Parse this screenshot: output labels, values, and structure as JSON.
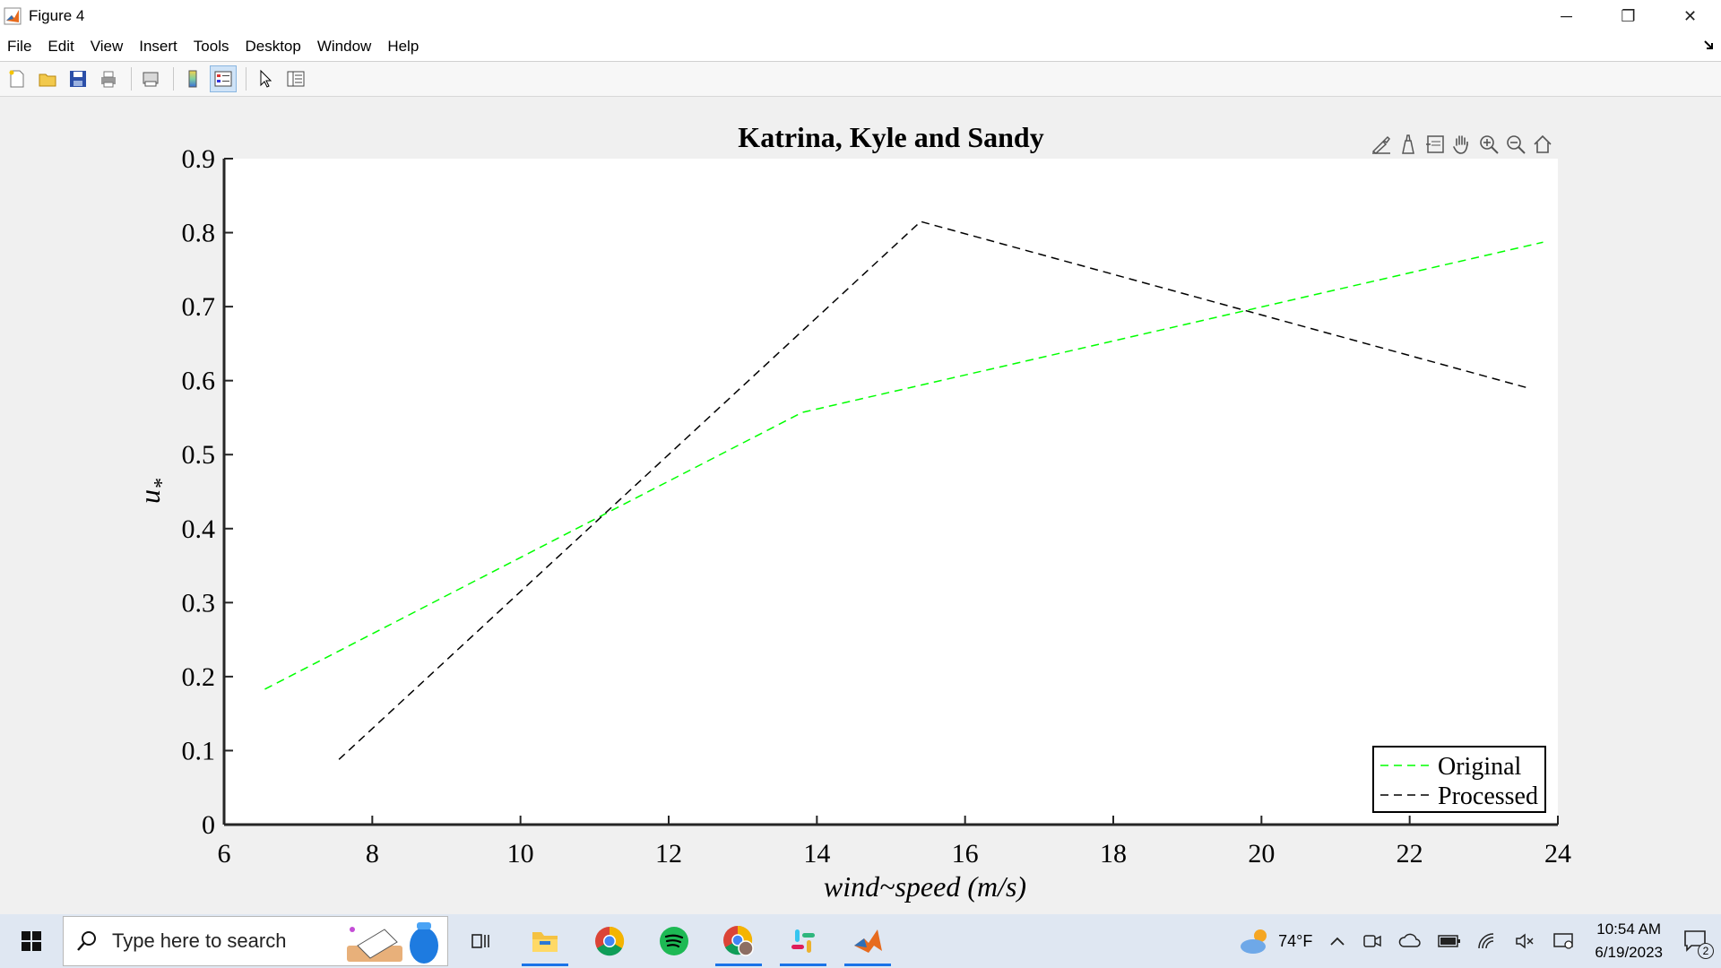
{
  "window": {
    "title": "Figure 4",
    "controls": {
      "minimize": "─",
      "maximize": "❐",
      "close": "✕"
    }
  },
  "menu": [
    "File",
    "Edit",
    "View",
    "Insert",
    "Tools",
    "Desktop",
    "Window",
    "Help"
  ],
  "toolbar": {
    "icons": [
      "new-figure-icon",
      "open-file-icon",
      "save-icon",
      "print-icon",
      "print-preview-icon",
      "colorbar-icon",
      "legend-icon",
      "pointer-icon",
      "property-inspector-icon"
    ],
    "pressed": "legend-icon"
  },
  "axes_toolbar": {
    "icons": [
      "brush-icon",
      "data-tips-icon",
      "data-cursor-icon",
      "pan-icon",
      "zoom-in-icon",
      "zoom-out-icon",
      "home-icon"
    ]
  },
  "chart_data": {
    "type": "line",
    "title": "Katrina, Kyle and Sandy",
    "xlabel": "wind~speed (m/s)",
    "ylabel": "u*",
    "xlim": [
      6,
      24
    ],
    "ylim": [
      0,
      0.9
    ],
    "xticks": [
      "6",
      "8",
      "10",
      "12",
      "14",
      "16",
      "18",
      "20",
      "22",
      "24"
    ],
    "yticks": [
      "0",
      "0.1",
      "0.2",
      "0.3",
      "0.4",
      "0.5",
      "0.6",
      "0.7",
      "0.8",
      "0.9"
    ],
    "grid": false,
    "legend_position": "bottom-right",
    "series": [
      {
        "name": "Original",
        "color": "#00ff00",
        "style": "dashed",
        "x": [
          6.55,
          13.8,
          23.8
        ],
        "y": [
          0.183,
          0.557,
          0.787
        ]
      },
      {
        "name": "Processed",
        "color": "#000000",
        "style": "dashed",
        "x": [
          7.55,
          15.4,
          23.6
        ],
        "y": [
          0.088,
          0.815,
          0.59
        ]
      }
    ]
  },
  "taskbar": {
    "search_placeholder": "Type here to search",
    "apps": [
      "task-view-icon",
      "file-explorer-icon",
      "chrome-icon",
      "spotify-icon",
      "chrome-profile-icon",
      "slack-icon",
      "matlab-icon"
    ],
    "weather": "74°F",
    "time": "10:54 AM",
    "date": "6/19/2023",
    "notifications": "2"
  }
}
